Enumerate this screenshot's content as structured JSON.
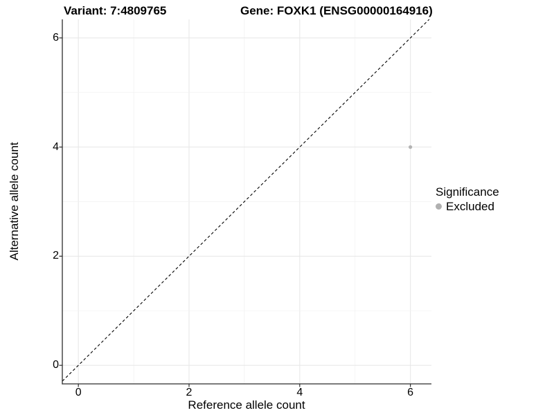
{
  "titles": {
    "variant": "Variant: 7:4809765",
    "gene": "Gene: FOXK1 (ENSG00000164916)"
  },
  "chart_data": {
    "type": "scatter",
    "xlabel": "Reference allele count",
    "ylabel": "Alternative allele count",
    "x_ticks": [
      0,
      2,
      4,
      6
    ],
    "y_ticks": [
      0,
      2,
      4,
      6
    ],
    "xlim": [
      -0.29,
      6.38
    ],
    "ylim": [
      -0.34,
      6.34
    ],
    "grid": "on",
    "minor_grid": "on",
    "series": [
      {
        "name": "Excluded",
        "color": "#b3b3b3",
        "points": [
          {
            "x": 6,
            "y": 4
          }
        ]
      }
    ],
    "reference_line": {
      "type": "identity",
      "style": "dashed",
      "color": "#000000"
    },
    "legend": {
      "title": "Significance",
      "position": "right",
      "items": [
        {
          "label": "Excluded",
          "color": "#b0b0b0",
          "marker": "circle"
        }
      ]
    }
  },
  "colors": {
    "background": "#ffffff",
    "axis": "#2b2b2b",
    "grid_major": "#e8e8e8",
    "grid_minor": "#f2f2f2",
    "text": "#000000"
  }
}
